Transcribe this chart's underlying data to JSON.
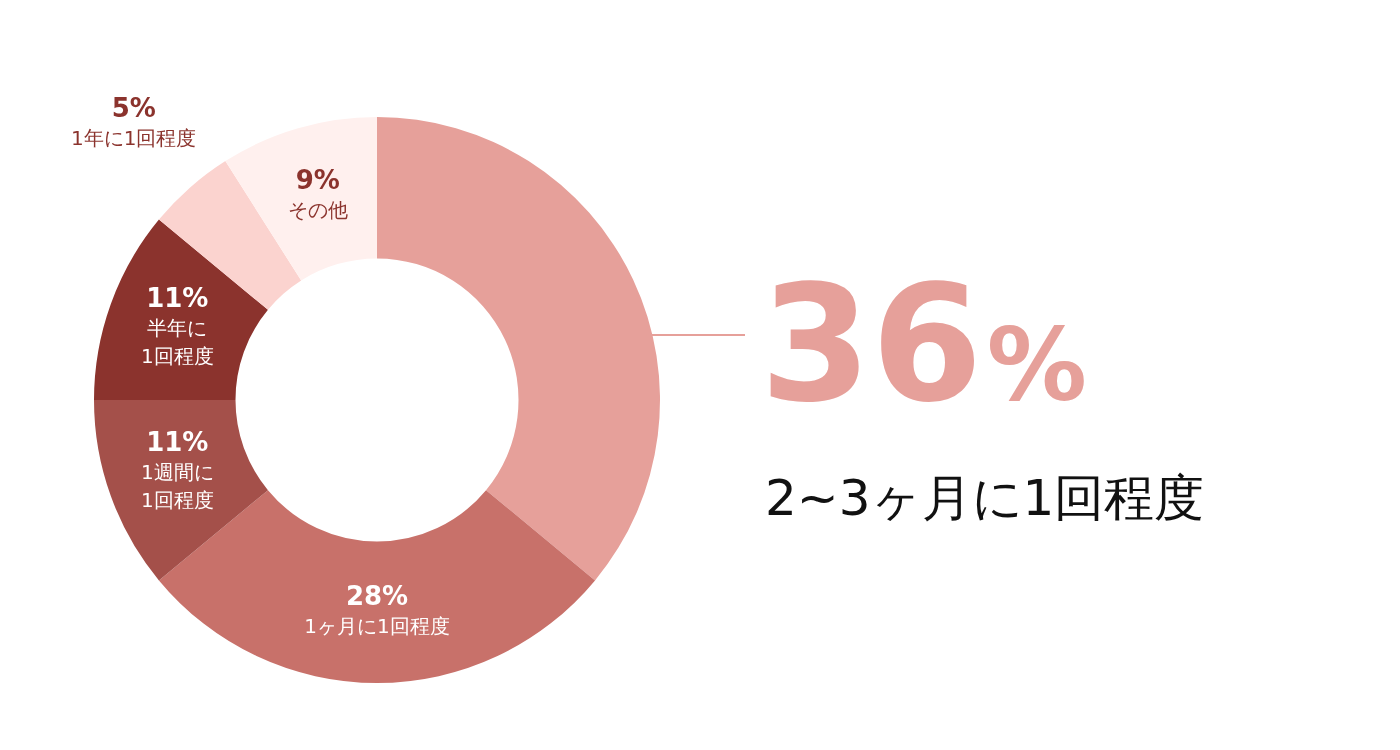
{
  "chart_data": {
    "type": "donut",
    "categories": [
      "2~3ヶ月に1回程度",
      "1ヶ月に1回程度",
      "1週間に1回程度",
      "半年に1回程度",
      "1年に1回程度",
      "その他"
    ],
    "values": [
      36,
      28,
      11,
      11,
      5,
      9
    ],
    "colors": [
      "#e6a09a",
      "#c8716a",
      "#a4504a",
      "#8b332d",
      "#fbd3cf",
      "#fff0ee"
    ],
    "value_labels": [
      "36%",
      "28%",
      "11%",
      "11%",
      "5%",
      "9%"
    ],
    "legend": false
  }
}
